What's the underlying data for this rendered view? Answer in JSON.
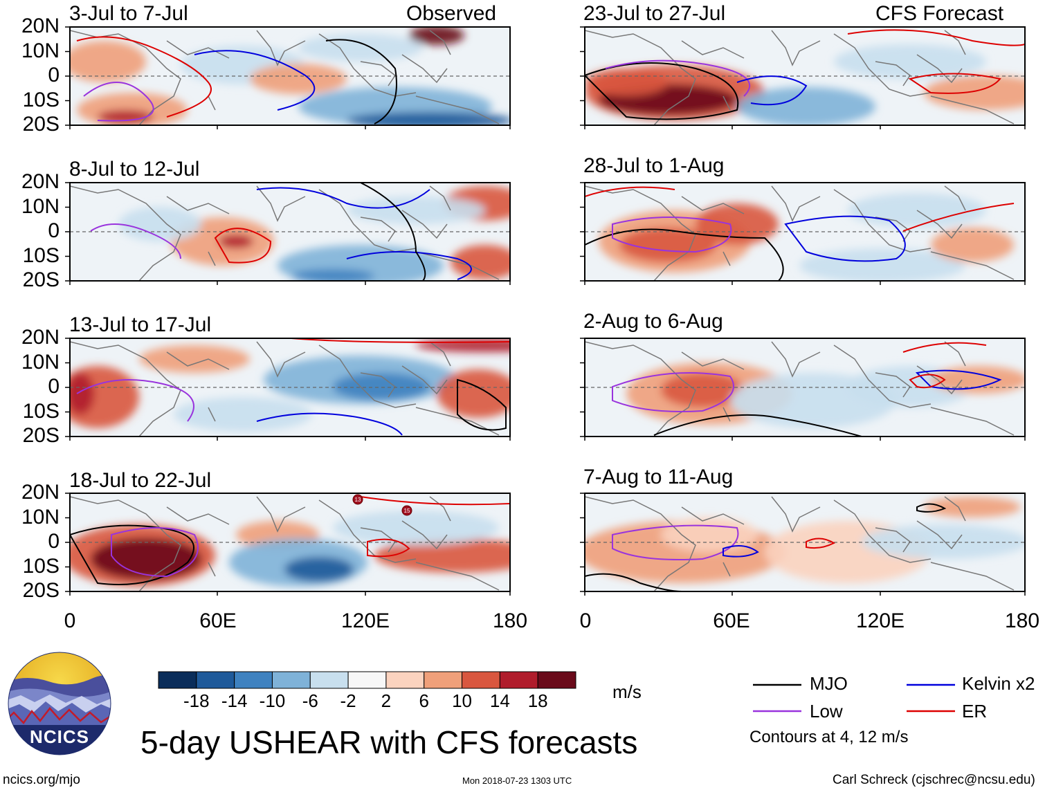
{
  "title": "5-day USHEAR with CFS forecasts",
  "corner_labels": {
    "left": "Observed",
    "right": "CFS Forecast"
  },
  "lat_labels": [
    "20N",
    "10N",
    "0",
    "10S",
    "20S"
  ],
  "lon_labels": [
    "0",
    "60E",
    "120E",
    "180"
  ],
  "panels": [
    {
      "period": "3-Jul to 7-Jul",
      "type": "observed"
    },
    {
      "period": "8-Jul to 12-Jul",
      "type": "observed"
    },
    {
      "period": "13-Jul to 17-Jul",
      "type": "observed"
    },
    {
      "period": "18-Jul to 22-Jul",
      "type": "observed"
    },
    {
      "period": "23-Jul to 27-Jul",
      "type": "forecast"
    },
    {
      "period": "28-Jul to 1-Aug",
      "type": "forecast"
    },
    {
      "period": "2-Aug to 6-Aug",
      "type": "forecast"
    },
    {
      "period": "7-Aug to 11-Aug",
      "type": "forecast"
    }
  ],
  "colorbar": {
    "unit": "m/s",
    "ticks": [
      "-18",
      "-14",
      "-10",
      "-6",
      "-2",
      "2",
      "6",
      "10",
      "14",
      "18"
    ],
    "colors": [
      "#0a2d5a",
      "#1f5a9a",
      "#3f82c0",
      "#7fb2d8",
      "#c8dfee",
      "#f7f7f7",
      "#fbd3bf",
      "#f0a07a",
      "#d9573f",
      "#b01c2c",
      "#6a0a1a"
    ]
  },
  "legend": {
    "items": [
      {
        "label": "MJO",
        "color": "#000000"
      },
      {
        "label": "Kelvin x2",
        "color": "#0000dd"
      },
      {
        "label": "Low",
        "color": "#9933dd"
      },
      {
        "label": "ER",
        "color": "#dd0000"
      }
    ],
    "note": "Contours at 4, 12 m/s"
  },
  "logo_text": "NCICS",
  "footer": {
    "left": "ncics.org/mjo",
    "center": "Mon 2018-07-23 1303 UTC",
    "right": "Carl Schreck (cjschrec@ncsu.edu)"
  },
  "storm_markers": [
    {
      "label": "13",
      "panel": 3
    },
    {
      "label": "15",
      "panel": 3
    }
  ]
}
